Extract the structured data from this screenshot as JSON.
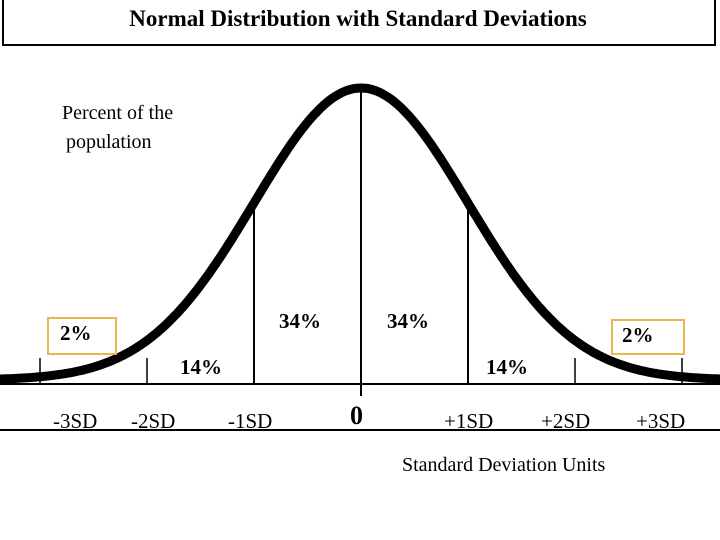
{
  "title": "Normal Distribution with Standard Deviations",
  "chart_data": {
    "type": "area",
    "distribution": "normal",
    "mean": 0,
    "sd": 1,
    "xlim": [
      -3.7,
      3.7
    ],
    "ylabel": "Percent of the population",
    "xlabel": "Standard Deviation Units",
    "tick_labels": [
      "-3SD",
      "-2SD",
      "-1SD",
      "0",
      "+1SD",
      "+2SD",
      "+3SD"
    ],
    "bands": [
      {
        "from": -3,
        "to": -2,
        "percent_label": "2%"
      },
      {
        "from": -2,
        "to": -1,
        "percent_label": "14%"
      },
      {
        "from": -1,
        "to": 0,
        "percent_label": "34%"
      },
      {
        "from": 0,
        "to": 1,
        "percent_label": "34%"
      },
      {
        "from": 1,
        "to": 2,
        "percent_label": "14%"
      },
      {
        "from": 2,
        "to": 3,
        "percent_label": "2%"
      }
    ],
    "colors": {
      "curve": "#000000",
      "label_box": "#ffffff",
      "label_box_border": "#e8b84a"
    }
  }
}
